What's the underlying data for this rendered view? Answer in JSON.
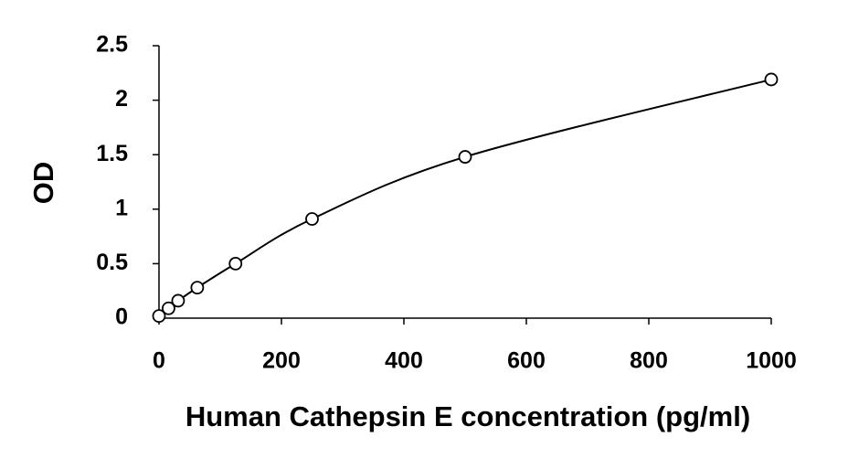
{
  "chart_data": {
    "type": "scatter",
    "x_label": "Human Cathepsin E concentration (pg/ml)",
    "y_label": "OD",
    "x": [
      0,
      15.6,
      31.25,
      62.5,
      125,
      250,
      500,
      1000
    ],
    "values": [
      0.02,
      0.09,
      0.16,
      0.28,
      0.5,
      0.91,
      1.48,
      2.19
    ],
    "color": "#000000",
    "smooth_line": true,
    "xlim": [
      0,
      1000
    ],
    "xticks": [
      0,
      200,
      400,
      600,
      800,
      1000
    ],
    "ylim": [
      0,
      2.5
    ],
    "yticks": [
      0,
      0.5,
      1,
      1.5,
      2,
      2.5
    ],
    "grid": false
  }
}
